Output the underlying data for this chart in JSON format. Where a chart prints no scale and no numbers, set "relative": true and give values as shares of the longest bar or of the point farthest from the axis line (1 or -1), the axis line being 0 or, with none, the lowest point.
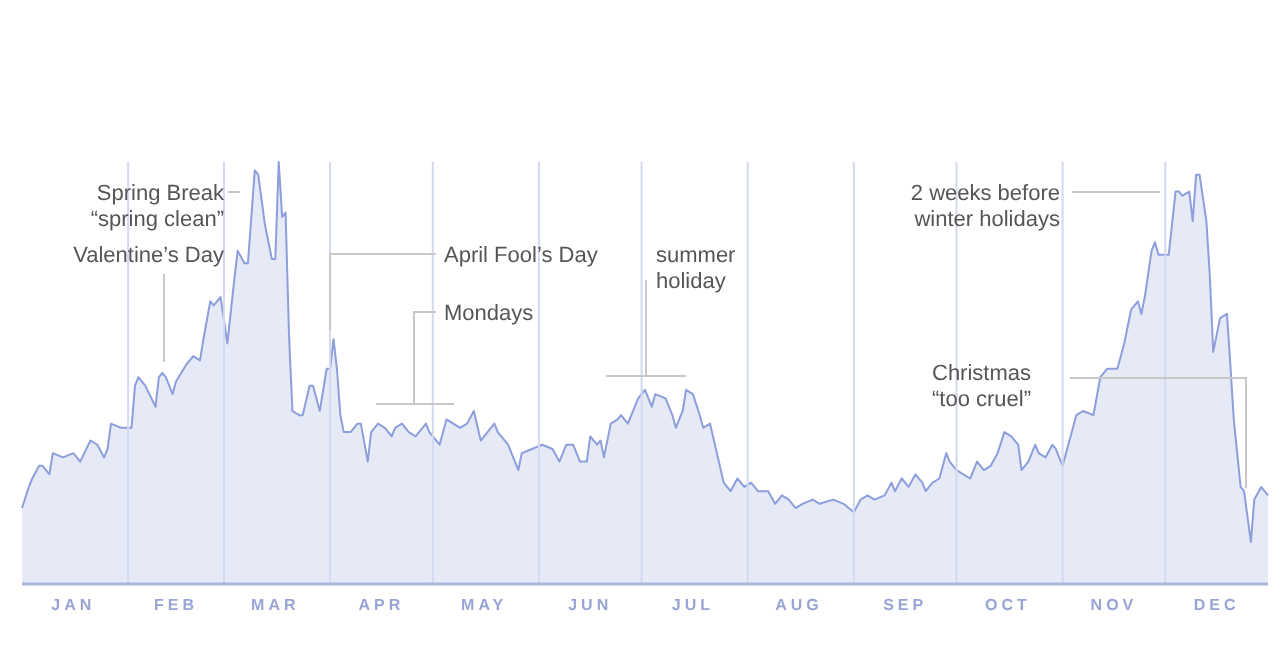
{
  "chart_data": {
    "type": "area",
    "relative": true,
    "grid": "x",
    "xlim": [
      "--01-01",
      "--12-31"
    ],
    "xticks": [
      {
        "value": "--01-16",
        "label": "JAN"
      },
      {
        "value": "--02-01",
        "label": null
      },
      {
        "value": "--02-15",
        "label": "FEB"
      },
      {
        "value": "--03-01",
        "label": null
      },
      {
        "value": "--03-16",
        "label": "MAR"
      },
      {
        "value": "--04-01",
        "label": null
      },
      {
        "value": "--04-16",
        "label": "APR"
      },
      {
        "value": "--05-01",
        "label": null
      },
      {
        "value": "--05-16",
        "label": "MAY"
      },
      {
        "value": "--06-01",
        "label": null
      },
      {
        "value": "--06-16",
        "label": "JUN"
      },
      {
        "value": "--07-01",
        "label": null
      },
      {
        "value": "--07-16",
        "label": "JUL"
      },
      {
        "value": "--08-01",
        "label": null
      },
      {
        "value": "--08-16",
        "label": "AUG"
      },
      {
        "value": "--09-01",
        "label": null
      },
      {
        "value": "--09-16",
        "label": "SEP"
      },
      {
        "value": "--10-01",
        "label": null
      },
      {
        "value": "--10-16",
        "label": "OCT"
      },
      {
        "value": "--11-01",
        "label": null
      },
      {
        "value": "--11-16",
        "label": "NOV"
      },
      {
        "value": "--12-01",
        "label": null
      },
      {
        "value": "--12-16",
        "label": "DEC"
      }
    ],
    "annotations": [
      "Spring Break\n“spring clean”",
      "Valentine’s Day",
      "April Fool’s Day",
      "Mondays",
      "summer\nholiday",
      "2 weeks before\nwinter holidays",
      "Christmas\n“too cruel”"
    ],
    "series": [
      {
        "color": "#8c9fdc",
        "x": [
          "--01-01",
          "--01-03",
          "--01-04",
          "--01-06",
          "--01-07",
          "--01-09",
          "--01-10",
          "--01-13",
          "--01-16",
          "--01-18",
          "--01-21",
          "--01-23",
          "--01-25",
          "--01-26",
          "--01-27",
          "--01-30",
          "--02-02",
          "--02-03",
          "--02-04",
          "--02-06",
          "--02-09",
          "--02-10",
          "--02-11",
          "--02-12",
          "--02-14",
          "--02-15",
          "--02-18",
          "--02-20",
          "--02-22",
          "--02-23",
          "--02-25",
          "--02-26",
          "--02-28",
          "--03-02",
          "--03-04",
          "--03-05",
          "--03-07",
          "--03-08",
          "--03-10",
          "--03-11",
          "--03-13",
          "--03-15",
          "--03-16",
          "--03-17",
          "--03-18",
          "--03-19",
          "--03-20",
          "--03-21",
          "--03-23",
          "--03-24",
          "--03-26",
          "--03-27",
          "--03-28",
          "--03-29",
          "--03-31",
          "--04-01",
          "--04-02",
          "--04-03",
          "--04-04",
          "--04-05",
          "--04-07",
          "--04-09",
          "--04-10",
          "--04-12",
          "--04-13",
          "--04-15",
          "--04-17",
          "--04-19",
          "--04-20",
          "--04-22",
          "--04-24",
          "--04-26",
          "--04-29",
          "--04-30",
          "--05-03",
          "--05-05",
          "--05-07",
          "--05-09",
          "--05-11",
          "--05-13",
          "--05-15",
          "--05-17",
          "--05-19",
          "--05-20",
          "--05-23",
          "--05-25",
          "--05-26",
          "--05-27",
          "--05-30",
          "--06-02",
          "--06-05",
          "--06-07",
          "--06-09",
          "--06-11",
          "--06-13",
          "--06-15",
          "--06-16",
          "--06-18",
          "--06-19",
          "--06-20",
          "--06-22",
          "--06-24",
          "--06-25",
          "--06-27",
          "--06-28",
          "--06-30",
          "--07-02",
          "--07-04",
          "--07-05",
          "--07-08",
          "--07-10",
          "--07-11",
          "--07-13",
          "--07-14",
          "--07-16",
          "--07-18",
          "--07-19",
          "--07-21",
          "--07-23",
          "--07-25",
          "--07-27",
          "--07-29",
          "--07-31",
          "--08-02",
          "--08-04",
          "--08-06",
          "--08-07",
          "--08-09",
          "--08-11",
          "--08-13",
          "--08-15",
          "--08-17",
          "--08-20",
          "--08-22",
          "--08-26",
          "--08-29",
          "--09-01",
          "--09-03",
          "--09-05",
          "--09-07",
          "--09-10",
          "--09-12",
          "--09-13",
          "--09-15",
          "--09-17",
          "--09-19",
          "--09-21",
          "--09-22",
          "--09-24",
          "--09-26",
          "--09-28",
          "--09-29",
          "--10-01",
          "--10-03",
          "--10-05",
          "--10-07",
          "--10-09",
          "--10-11",
          "--10-13",
          "--10-15",
          "--10-17",
          "--10-19",
          "--10-20",
          "--10-22",
          "--10-24",
          "--10-25",
          "--10-27",
          "--10-29",
          "--10-30",
          "--11-01",
          "--11-03",
          "--11-05",
          "--11-07",
          "--11-10",
          "--11-12",
          "--11-14",
          "--11-17",
          "--11-19",
          "--11-21",
          "--11-23",
          "--11-24",
          "--11-25",
          "--11-27",
          "--11-28",
          "--11-29",
          "--11-30",
          "--12-02",
          "--12-04",
          "--12-05",
          "--12-06",
          "--12-08",
          "--12-09",
          "--12-10",
          "--12-11",
          "--12-13",
          "--12-14",
          "--12-15",
          "--12-17",
          "--12-19",
          "--12-20",
          "--12-21",
          "--12-23",
          "--12-24",
          "--12-26",
          "--12-27",
          "--12-29",
          "--12-31"
        ],
        "values": [
          0.18,
          0.23,
          0.25,
          0.28,
          0.28,
          0.26,
          0.31,
          0.3,
          0.31,
          0.29,
          0.34,
          0.33,
          0.3,
          0.32,
          0.38,
          0.37,
          0.37,
          0.47,
          0.49,
          0.47,
          0.42,
          0.49,
          0.5,
          0.49,
          0.45,
          0.48,
          0.52,
          0.54,
          0.53,
          0.58,
          0.67,
          0.66,
          0.68,
          0.57,
          0.72,
          0.79,
          0.76,
          0.76,
          0.98,
          0.97,
          0.85,
          0.77,
          0.77,
          1,
          0.87,
          0.88,
          0.59,
          0.41,
          0.4,
          0.4,
          0.47,
          0.47,
          0.44,
          0.41,
          0.51,
          0.51,
          0.58,
          0.51,
          0.4,
          0.36,
          0.36,
          0.38,
          0.38,
          0.29,
          0.36,
          0.38,
          0.37,
          0.35,
          0.37,
          0.38,
          0.36,
          0.35,
          0.38,
          0.36,
          0.33,
          0.39,
          0.38,
          0.37,
          0.38,
          0.41,
          0.34,
          0.36,
          0.38,
          0.36,
          0.33,
          0.29,
          0.27,
          0.31,
          0.32,
          0.33,
          0.32,
          0.29,
          0.33,
          0.33,
          0.29,
          0.29,
          0.35,
          0.33,
          0.34,
          0.3,
          0.38,
          0.39,
          0.4,
          0.38,
          0.4,
          0.44,
          0.46,
          0.42,
          0.45,
          0.44,
          0.4,
          0.37,
          0.41,
          0.46,
          0.45,
          0.4,
          0.37,
          0.38,
          0.31,
          0.24,
          0.22,
          0.25,
          0.23,
          0.24,
          0.22,
          0.22,
          0.22,
          0.19,
          0.21,
          0.2,
          0.18,
          0.19,
          0.2,
          0.19,
          0.2,
          0.19,
          0.17,
          0.2,
          0.21,
          0.2,
          0.21,
          0.24,
          0.22,
          0.25,
          0.23,
          0.26,
          0.24,
          0.22,
          0.24,
          0.25,
          0.31,
          0.29,
          0.27,
          0.26,
          0.25,
          0.29,
          0.27,
          0.28,
          0.31,
          0.36,
          0.35,
          0.33,
          0.27,
          0.29,
          0.33,
          0.31,
          0.3,
          0.33,
          0.32,
          0.28,
          0.34,
          0.4,
          0.41,
          0.4,
          0.49,
          0.51,
          0.51,
          0.57,
          0.65,
          0.67,
          0.64,
          0.68,
          0.79,
          0.81,
          0.78,
          0.78,
          0.78,
          0.93,
          0.93,
          0.92,
          0.93,
          0.86,
          0.97,
          0.97,
          0.86,
          0.73,
          0.55,
          0.63,
          0.64,
          0.52,
          0.39,
          0.23,
          0.22,
          0.1,
          0.2,
          0.23,
          0.21
        ]
      }
    ]
  }
}
